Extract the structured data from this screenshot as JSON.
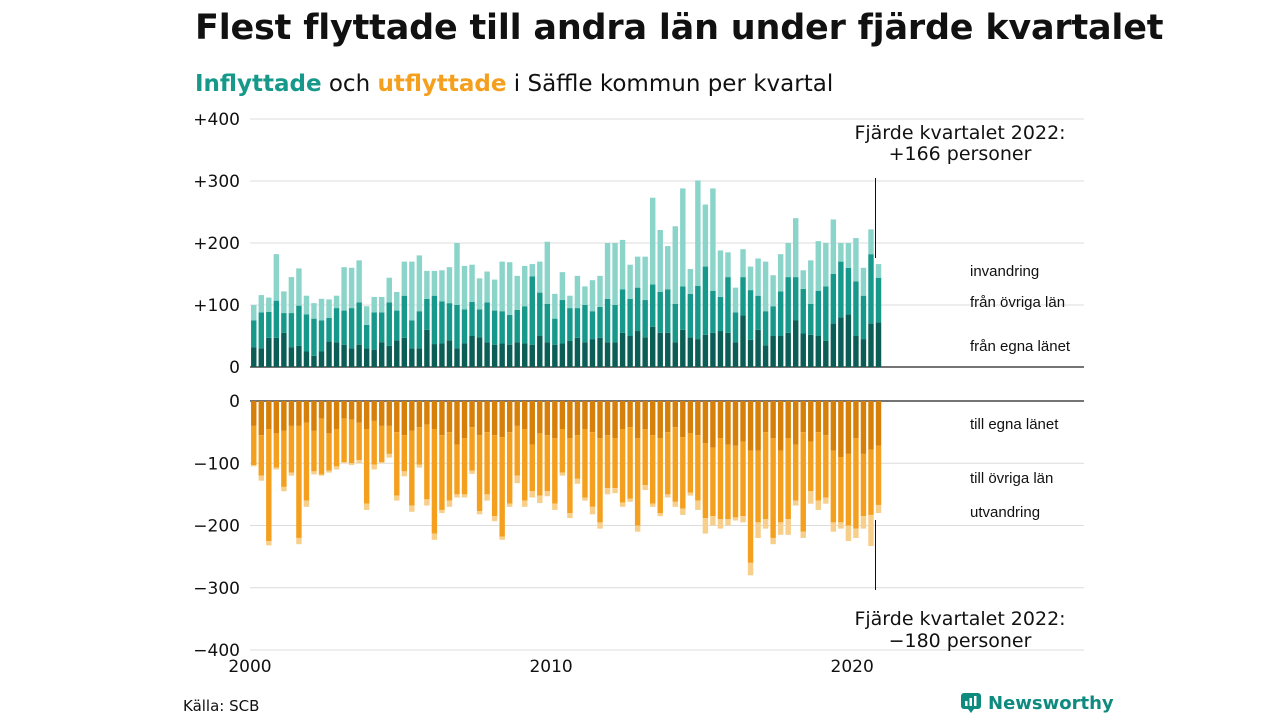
{
  "title": "Flest flyttade till andra län under fjärde kvartalet",
  "subtitle": {
    "in_word": "Inflyttade",
    "och": "och",
    "out_word": "utflyttade",
    "rest": "i Säffle kommun per kvartal"
  },
  "source": "Källa: SCB",
  "brand": "Newsworthy",
  "colors": {
    "in_dark": "#0b5e55",
    "in_mid": "#16998a",
    "in_light": "#8ad4ca",
    "out_dark": "#d6800a",
    "out_mid": "#f4a01e",
    "out_light": "#f7cf8a",
    "accent_in": "#16998a",
    "accent_out": "#f4a01e"
  },
  "annotations": {
    "top_line1": "Fjärde kvartalet 2022:",
    "top_line2": "+166 personer",
    "bottom_line1": "Fjärde kvartalet 2022:",
    "bottom_line2": "−180 personer"
  },
  "segment_labels": {
    "invandring": "invandring",
    "fran_ovriga_lan": "från övriga län",
    "fran_egna_lanet": "från egna länet",
    "till_egna_lanet": "till egna länet",
    "till_ovriga_lan": "till övriga län",
    "utvandring": "utvandring"
  },
  "chart_data": {
    "type": "bar",
    "stacked": true,
    "grid": true,
    "x_start": 2000,
    "x_step": 0.25,
    "xlim": [
      2000,
      2027.7
    ],
    "x_ticks": [
      "2000",
      "2010",
      "2020"
    ],
    "ylim_top": [
      0,
      400
    ],
    "ylim_bottom": [
      -400,
      0
    ],
    "y_ticks_top": [
      "+400",
      "+300",
      "+200",
      "+100",
      "0"
    ],
    "y_ticks_bottom": [
      "0",
      "−100",
      "−200",
      "−300",
      "−400"
    ],
    "inflyttade": {
      "fran_egna_lanet": [
        32,
        30,
        47,
        47,
        55,
        32,
        34,
        25,
        18,
        25,
        41,
        40,
        36,
        30,
        36,
        30,
        28,
        40,
        34,
        43,
        47,
        30,
        30,
        60,
        37,
        38,
        43,
        30,
        38,
        50,
        48,
        40,
        36,
        38,
        36,
        40,
        38,
        36,
        50,
        40,
        36,
        38,
        42,
        47,
        40,
        45,
        47,
        40,
        40,
        55,
        50,
        58,
        48,
        65,
        55,
        55,
        40,
        60,
        48,
        45,
        52,
        55,
        58,
        55,
        40,
        83,
        44,
        60,
        35,
        50,
        50,
        55,
        75,
        54,
        52,
        50,
        42,
        70,
        80,
        85,
        50,
        45,
        70,
        72
      ],
      "fran_ovriga_lan": [
        43,
        58,
        42,
        60,
        32,
        55,
        65,
        60,
        60,
        50,
        38,
        55,
        55,
        65,
        68,
        38,
        60,
        48,
        70,
        48,
        68,
        45,
        60,
        50,
        78,
        68,
        60,
        70,
        55,
        55,
        45,
        64,
        55,
        52,
        48,
        52,
        60,
        110,
        70,
        62,
        42,
        70,
        53,
        48,
        60,
        45,
        50,
        70,
        60,
        70,
        60,
        70,
        60,
        68,
        66,
        70,
        62,
        70,
        70,
        86,
        110,
        68,
        55,
        90,
        48,
        62,
        80,
        55,
        55,
        48,
        72,
        90,
        70,
        72,
        50,
        73,
        88,
        80,
        90,
        75,
        88,
        70,
        112,
        72
      ],
      "invandring": [
        25,
        28,
        23,
        75,
        35,
        58,
        60,
        30,
        25,
        35,
        30,
        20,
        70,
        65,
        68,
        30,
        25,
        25,
        40,
        30,
        55,
        95,
        90,
        45,
        40,
        50,
        58,
        100,
        70,
        60,
        50,
        50,
        50,
        80,
        85,
        55,
        65,
        20,
        50,
        100,
        40,
        45,
        20,
        52,
        30,
        50,
        50,
        90,
        100,
        80,
        55,
        50,
        70,
        140,
        100,
        70,
        125,
        158,
        40,
        170,
        100,
        165,
        75,
        40,
        40,
        45,
        38,
        60,
        80,
        50,
        60,
        55,
        95,
        30,
        70,
        80,
        70,
        88,
        30,
        40,
        70,
        45,
        40,
        22
      ]
    },
    "utflyttade": {
      "till_egna_lanet": [
        -40,
        -55,
        -45,
        -52,
        -48,
        -40,
        -40,
        -35,
        -48,
        -28,
        -52,
        -45,
        -28,
        -30,
        -35,
        -45,
        -32,
        -40,
        -40,
        -50,
        -55,
        -48,
        -42,
        -38,
        -45,
        -55,
        -50,
        -70,
        -60,
        -42,
        -55,
        -50,
        -55,
        -58,
        -50,
        -40,
        -45,
        -70,
        -52,
        -55,
        -60,
        -45,
        -60,
        -55,
        -45,
        -50,
        -60,
        -55,
        -60,
        -45,
        -42,
        -60,
        -45,
        -55,
        -60,
        -50,
        -42,
        -58,
        -52,
        -55,
        -68,
        -75,
        -60,
        -70,
        -72,
        -65,
        -80,
        -80,
        -50,
        -60,
        -80,
        -60,
        -70,
        -50,
        -65,
        -50,
        -55,
        -80,
        -90,
        -85,
        -60,
        -85,
        -78,
        -72
      ],
      "till_ovriga_lan": [
        -63,
        -65,
        -180,
        -55,
        -90,
        -75,
        -180,
        -125,
        -65,
        -90,
        -60,
        -60,
        -70,
        -70,
        -60,
        -120,
        -70,
        -58,
        -45,
        -102,
        -58,
        -120,
        -60,
        -120,
        -168,
        -120,
        -110,
        -80,
        -90,
        -70,
        -122,
        -100,
        -130,
        -160,
        -115,
        -80,
        -115,
        -75,
        -100,
        -90,
        -105,
        -70,
        -120,
        -70,
        -110,
        -120,
        -135,
        -85,
        -80,
        -118,
        -115,
        -140,
        -90,
        -110,
        -120,
        -100,
        -120,
        -115,
        -95,
        -105,
        -120,
        -110,
        -130,
        -120,
        -115,
        -120,
        -180,
        -115,
        -140,
        -160,
        -115,
        -130,
        -90,
        -160,
        -80,
        -110,
        -100,
        -115,
        -105,
        -115,
        -145,
        -100,
        -105,
        -95
      ],
      "utvandring": [
        -2,
        -8,
        -7,
        -3,
        -7,
        -5,
        -10,
        -10,
        -5,
        -2,
        -3,
        -5,
        -2,
        -3,
        -5,
        -10,
        -8,
        -2,
        -6,
        -8,
        -8,
        -10,
        -5,
        -10,
        -10,
        -5,
        -10,
        -5,
        -5,
        -5,
        -5,
        -10,
        -8,
        -5,
        -5,
        -12,
        -10,
        -10,
        -12,
        -8,
        -10,
        -5,
        -8,
        -8,
        -5,
        -12,
        -10,
        -10,
        -8,
        -7,
        -5,
        -10,
        -8,
        -5,
        -5,
        -5,
        -8,
        -10,
        -5,
        -15,
        -25,
        -15,
        -15,
        -10,
        -5,
        -10,
        -20,
        -25,
        -15,
        -10,
        -20,
        -25,
        -8,
        -10,
        -20,
        -15,
        -10,
        -15,
        -10,
        -25,
        -15,
        -20,
        -50,
        -13
      ]
    }
  }
}
